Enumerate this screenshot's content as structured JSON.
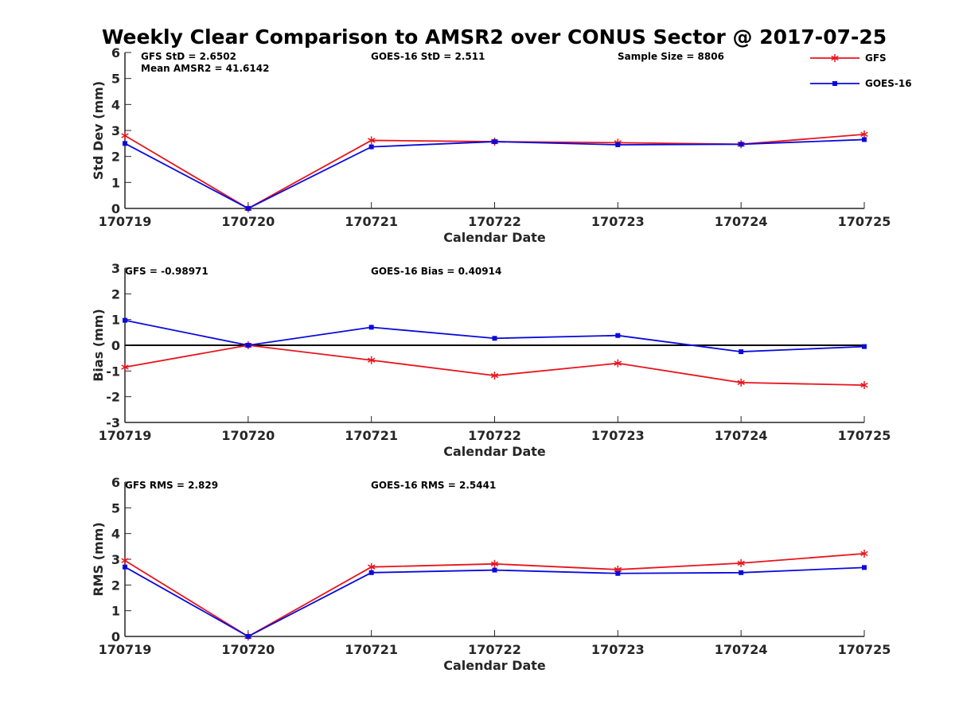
{
  "figure": {
    "title": "Weekly Clear Comparison to AMSR2 over CONUS Sector @ 2017-07-25",
    "legend": {
      "placement": "top-right",
      "entries": [
        {
          "label": "GFS",
          "color": "#e8141c",
          "marker": "asterisk"
        },
        {
          "label": "GOES-16",
          "color": "#0a0adc",
          "marker": "square"
        }
      ]
    }
  },
  "chart_data": [
    {
      "type": "line",
      "xlabel": "Calendar Date",
      "ylabel": "Std Dev (mm)",
      "categories": [
        "170719",
        "170720",
        "170721",
        "170722",
        "170723",
        "170724",
        "170725"
      ],
      "ylim": [
        0,
        6
      ],
      "yticks": [
        "0",
        "1",
        "2",
        "3",
        "4",
        "5",
        "6"
      ],
      "zero_line": false,
      "series": [
        {
          "name": "GFS",
          "color": "#e8141c",
          "marker": "asterisk",
          "values": [
            2.8,
            0.0,
            2.62,
            2.57,
            2.53,
            2.47,
            2.85
          ]
        },
        {
          "name": "GOES-16",
          "color": "#0a0adc",
          "marker": "square",
          "values": [
            2.5,
            0.0,
            2.37,
            2.57,
            2.45,
            2.47,
            2.65
          ]
        }
      ],
      "annotations": [
        {
          "text": "GFS StD = 2.6502"
        },
        {
          "text": "Mean AMSR2 = 41.6142"
        },
        {
          "text": "GOES-16 StD = 2.511"
        },
        {
          "text": "Sample Size = 8806"
        }
      ]
    },
    {
      "type": "line",
      "xlabel": "Calendar Date",
      "ylabel": "Bias (mm)",
      "categories": [
        "170719",
        "170720",
        "170721",
        "170722",
        "170723",
        "170724",
        "170725"
      ],
      "ylim": [
        -3,
        3
      ],
      "yticks": [
        "-3",
        "-2",
        "-1",
        "0",
        "1",
        "2",
        "3"
      ],
      "zero_line": true,
      "series": [
        {
          "name": "GFS",
          "color": "#e8141c",
          "marker": "asterisk",
          "values": [
            -0.85,
            0.0,
            -0.58,
            -1.18,
            -0.7,
            -1.45,
            -1.55
          ]
        },
        {
          "name": "GOES-16",
          "color": "#0a0adc",
          "marker": "square",
          "values": [
            0.97,
            0.0,
            0.7,
            0.27,
            0.38,
            -0.25,
            -0.05
          ]
        }
      ],
      "annotations": [
        {
          "text": "GFS = -0.98971"
        },
        {
          "text": "GOES-16 Bias  = 0.40914"
        }
      ]
    },
    {
      "type": "line",
      "xlabel": "Calendar Date",
      "ylabel": "RMS (mm)",
      "categories": [
        "170719",
        "170720",
        "170721",
        "170722",
        "170723",
        "170724",
        "170725"
      ],
      "ylim": [
        0,
        6
      ],
      "yticks": [
        "0",
        "1",
        "2",
        "3",
        "4",
        "5",
        "6"
      ],
      "zero_line": false,
      "series": [
        {
          "name": "GFS",
          "color": "#e8141c",
          "marker": "asterisk",
          "values": [
            2.95,
            0.0,
            2.7,
            2.82,
            2.6,
            2.85,
            3.22
          ]
        },
        {
          "name": "GOES-16",
          "color": "#0a0adc",
          "marker": "square",
          "values": [
            2.7,
            0.0,
            2.48,
            2.58,
            2.45,
            2.48,
            2.68
          ]
        }
      ],
      "annotations": [
        {
          "text": "GFS RMS = 2.829"
        },
        {
          "text": "GOES-16 RMS = 2.5441"
        }
      ]
    }
  ]
}
